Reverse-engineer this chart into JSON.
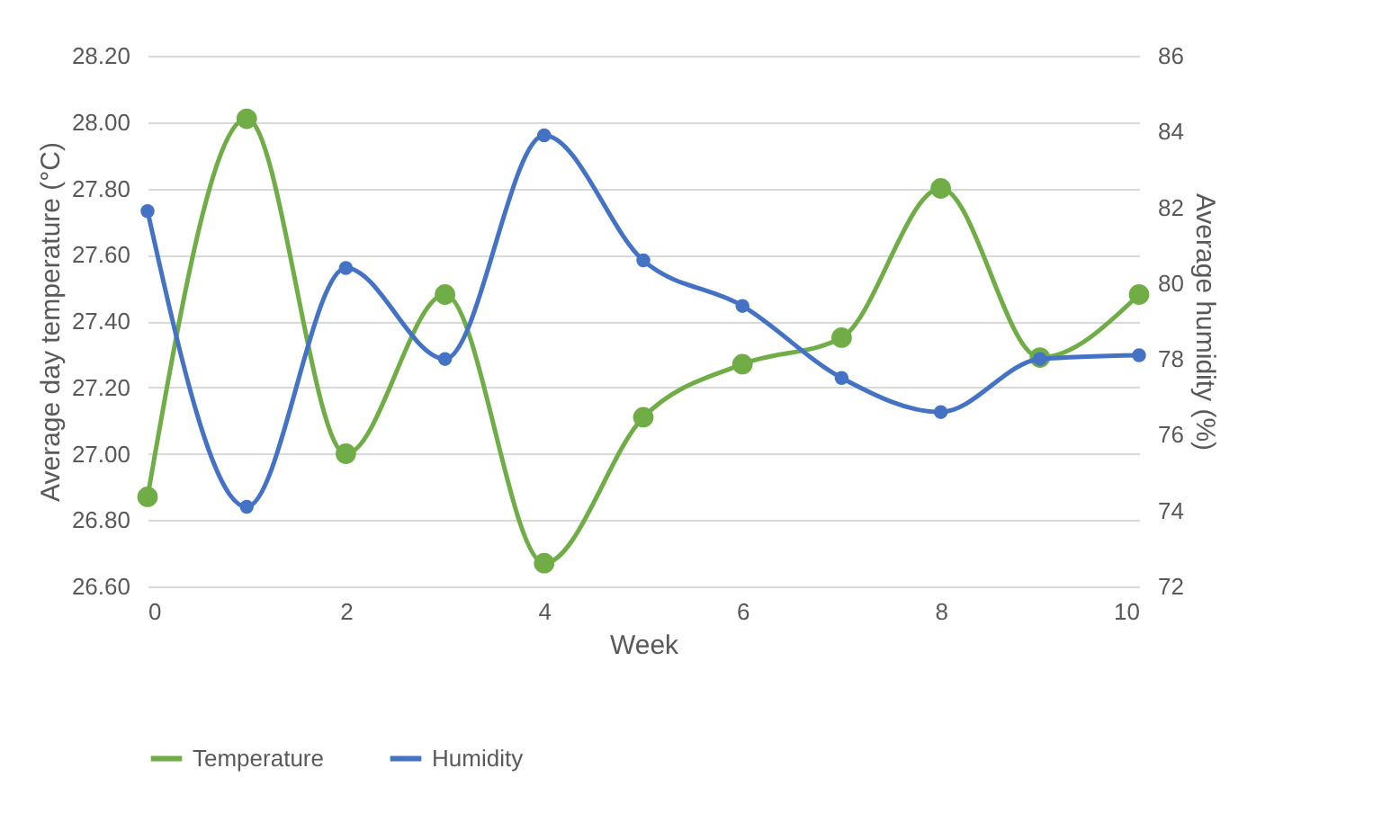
{
  "chart_data": {
    "type": "line",
    "xlabel": "Week",
    "ylabel": "Average day temperature (°C)",
    "y2label": "Average humidity (%)",
    "x": [
      0,
      1,
      2,
      3,
      4,
      5,
      6,
      7,
      8,
      9,
      10
    ],
    "series": [
      {
        "name": "Temperature",
        "color": "#70ad47",
        "values": [
          26.87,
          28.01,
          27.0,
          27.48,
          26.67,
          27.11,
          27.27,
          27.35,
          27.8,
          27.29,
          27.48
        ]
      },
      {
        "name": "Humidity",
        "color": "#4472c4",
        "axis": "y2",
        "values": [
          81.9,
          74.1,
          80.4,
          78.0,
          83.9,
          80.6,
          79.4,
          77.5,
          76.6,
          78.0,
          78.1
        ]
      }
    ],
    "xlim": [
      0,
      10
    ],
    "xticks": [
      0,
      2,
      4,
      6,
      8,
      10
    ],
    "ylim": [
      26.6,
      28.2
    ],
    "yticks": [
      {
        "value": 26.6,
        "label": "26.60"
      },
      {
        "value": 26.8,
        "label": "26.80"
      },
      {
        "value": 27.0,
        "label": "27.00"
      },
      {
        "value": 27.2,
        "label": "27.20"
      },
      {
        "value": 27.4,
        "label": "27.40"
      },
      {
        "value": 27.6,
        "label": "27.60"
      },
      {
        "value": 27.8,
        "label": "27.80"
      },
      {
        "value": 28.0,
        "label": "28.00"
      },
      {
        "value": 28.2,
        "label": "28.20"
      }
    ],
    "y2lim": [
      72,
      86
    ],
    "y2ticks": [
      72,
      74,
      76,
      78,
      80,
      82,
      84,
      86
    ],
    "grid": "y",
    "legend": "bottom",
    "marker": "circle",
    "line_style": "solid"
  }
}
